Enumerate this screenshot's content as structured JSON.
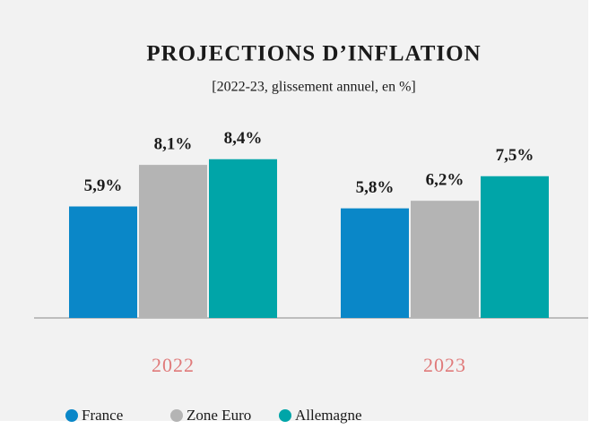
{
  "chart_data": {
    "type": "bar",
    "title": "PROJECTIONS D’INFLATION",
    "subtitle": "[2022-23, glissement annuel, en %]",
    "categories": [
      "2022",
      "2023"
    ],
    "series": [
      {
        "name": "France",
        "color": "#0a87c8",
        "values": [
          5.9,
          5.8
        ],
        "value_labels": [
          "5,9%",
          "5,8%"
        ]
      },
      {
        "name": "Zone Euro",
        "color": "#b4b4b4",
        "values": [
          8.1,
          6.2
        ],
        "value_labels": [
          "8,1%",
          "6,2%"
        ]
      },
      {
        "name": "Allemagne",
        "color": "#00a5a8",
        "values": [
          8.4,
          7.5
        ],
        "value_labels": [
          "8,4%",
          "7,5%"
        ]
      }
    ]
  }
}
